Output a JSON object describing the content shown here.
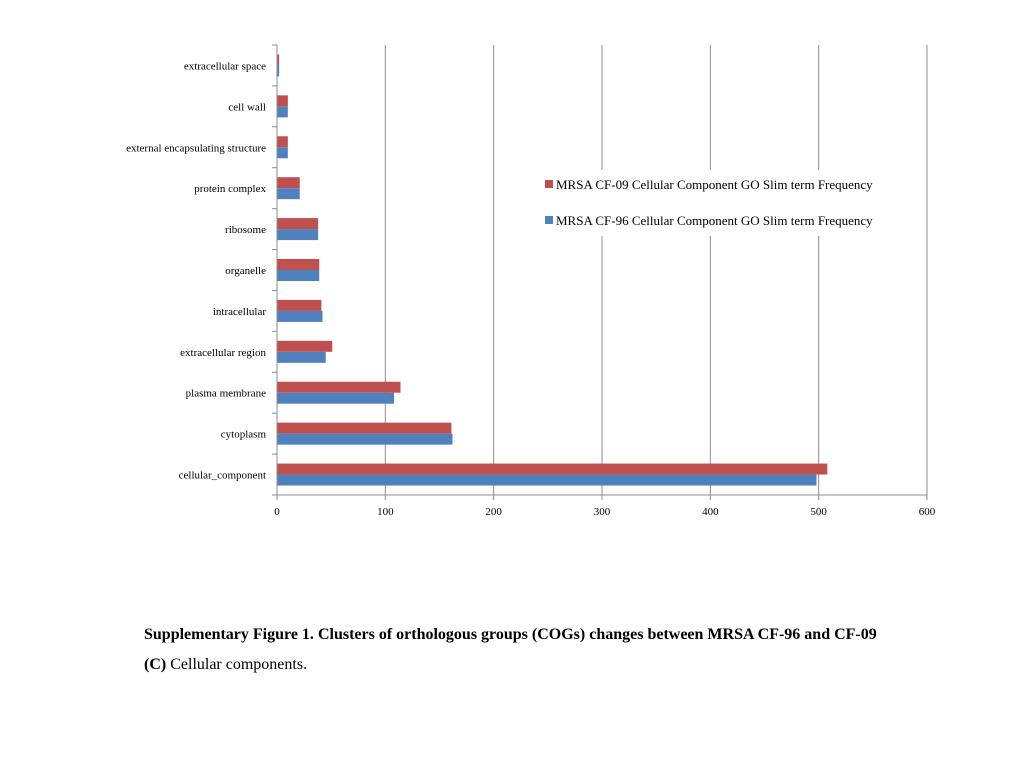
{
  "chart_data": {
    "type": "bar",
    "orientation": "horizontal",
    "categories": [
      "extracellular space",
      "cell wall",
      "external encapsulating structure",
      "protein complex",
      "ribosome",
      "organelle",
      "intracellular",
      "extracellular region",
      "plasma membrane",
      "cytoplasm",
      "cellular_component"
    ],
    "series": [
      {
        "name": "MRSA CF-09 Cellular Component GO Slim term Frequency",
        "color": "#c0504d",
        "values": [
          2,
          10,
          10,
          21,
          38,
          39,
          41,
          51,
          114,
          161,
          508
        ]
      },
      {
        "name": "MRSA CF-96 Cellular Component GO Slim term Frequency",
        "color": "#4f81bd",
        "values": [
          2,
          10,
          10,
          21,
          38,
          39,
          42,
          45,
          108,
          162,
          498
        ]
      }
    ],
    "xlim": [
      0,
      600
    ],
    "xticks": [
      0,
      100,
      200,
      300,
      400,
      500,
      600
    ],
    "grid": true,
    "legend_position": "right"
  },
  "caption": {
    "label": "Supplementary Figure 1.",
    "bold_text": " Clusters of orthologous groups (COGs) changes between MRSA CF-96 and CF-09",
    "panel_label": "(C)",
    "text": " Cellular components."
  }
}
